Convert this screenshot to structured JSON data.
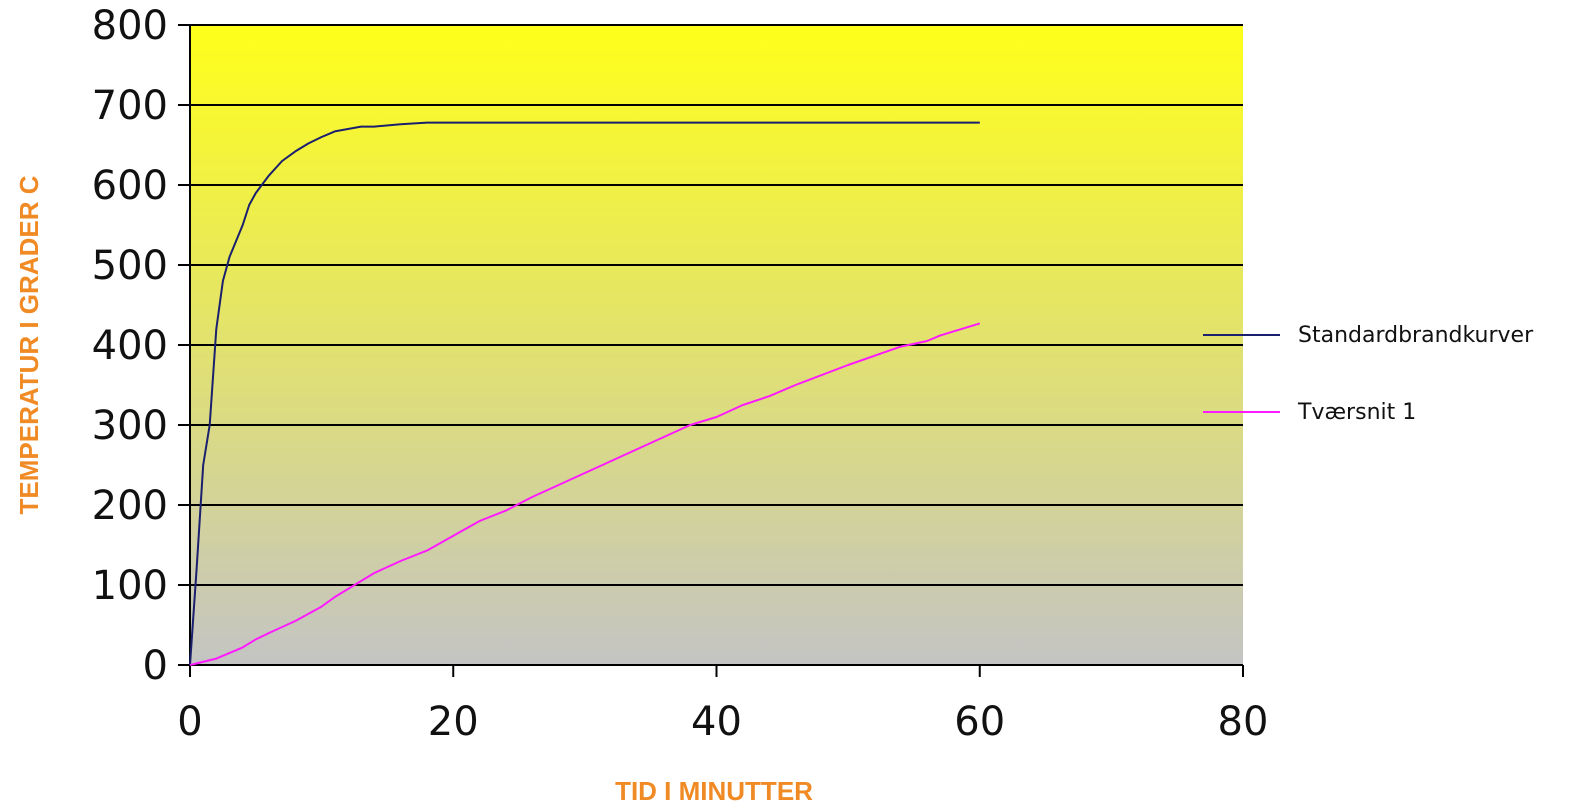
{
  "chart_data": {
    "type": "line",
    "xlabel": "TID I MINUTTER",
    "ylabel": "TEMPERATUR I GRADER C",
    "xlim": [
      0,
      80
    ],
    "ylim": [
      0,
      800
    ],
    "xticks": [
      0,
      20,
      40,
      60,
      80
    ],
    "yticks": [
      0,
      100,
      200,
      300,
      400,
      500,
      600,
      700,
      800
    ],
    "grid": true,
    "legend_position": "right",
    "background": {
      "top_color": "#ffff1a",
      "bottom_color": "#c4c4c4"
    },
    "series": [
      {
        "name": "Standardbrandkurver",
        "color": "#1a1f6e",
        "x": [
          0,
          0.5,
          1,
          1.5,
          2,
          2.5,
          3,
          3.5,
          4,
          4.5,
          5,
          6,
          7,
          8,
          9,
          10,
          11,
          12,
          13,
          14,
          16,
          18,
          20,
          30,
          40,
          50,
          60
        ],
        "y": [
          0,
          120,
          250,
          300,
          420,
          480,
          510,
          530,
          550,
          575,
          590,
          612,
          630,
          642,
          652,
          660,
          667,
          670,
          673,
          673,
          676,
          678,
          678,
          678,
          678,
          678,
          678
        ]
      },
      {
        "name": "Tværsnit 1",
        "color": "#ff1aff",
        "x": [
          0,
          2,
          4,
          5,
          6,
          8,
          10,
          11,
          14,
          16,
          18,
          22,
          24,
          26,
          30,
          34,
          38,
          40,
          42,
          44,
          46,
          50,
          54,
          56,
          57,
          60
        ],
        "y": [
          0,
          8,
          22,
          32,
          40,
          55,
          73,
          85,
          115,
          130,
          143,
          180,
          193,
          210,
          240,
          270,
          300,
          310,
          325,
          336,
          350,
          375,
          398,
          405,
          412,
          427
        ]
      }
    ]
  }
}
